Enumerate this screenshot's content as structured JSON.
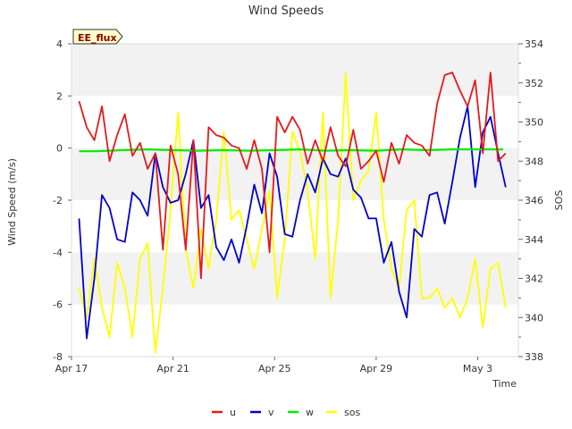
{
  "chart_data": {
    "type": "line",
    "title": "Wind Speeds",
    "xlabel": "Time",
    "ylabel": "Wind Speed (m/s)",
    "y2label": "SOS",
    "ylim": [
      -8,
      4
    ],
    "y2lim": [
      338,
      354
    ],
    "xlim": [
      0,
      17.6
    ],
    "x_unit": "days since Apr 17",
    "x_ticks": [
      {
        "value": 0,
        "label": "Apr 17"
      },
      {
        "value": 4,
        "label": "Apr 21"
      },
      {
        "value": 8,
        "label": "Apr 25"
      },
      {
        "value": 12,
        "label": "Apr 29"
      },
      {
        "value": 16,
        "label": "May 3"
      }
    ],
    "y_ticks": [
      -8,
      -6,
      -4,
      -2,
      0,
      2,
      4
    ],
    "y2_ticks": [
      338,
      340,
      342,
      344,
      346,
      348,
      350,
      352,
      354
    ],
    "badge": "EE_flux",
    "legend_position": "bottom-center",
    "series": [
      {
        "name": "u",
        "color": "#e41a1c",
        "axis": "left",
        "x": [
          0.3,
          0.6,
          0.9,
          1.2,
          1.5,
          1.8,
          2.1,
          2.4,
          2.7,
          3.0,
          3.3,
          3.6,
          3.9,
          4.2,
          4.5,
          4.8,
          5.1,
          5.4,
          5.7,
          6.0,
          6.3,
          6.6,
          6.9,
          7.2,
          7.5,
          7.8,
          8.1,
          8.4,
          8.7,
          9.0,
          9.3,
          9.6,
          9.9,
          10.2,
          10.5,
          10.8,
          11.1,
          11.4,
          11.7,
          12.0,
          12.3,
          12.6,
          12.9,
          13.2,
          13.5,
          13.8,
          14.1,
          14.4,
          14.7,
          15.0,
          15.3,
          15.6,
          15.9,
          16.2,
          16.5,
          16.8,
          17.1
        ],
        "values": [
          1.8,
          0.8,
          0.3,
          1.6,
          -0.5,
          0.5,
          1.3,
          -0.3,
          0.2,
          -0.8,
          -0.2,
          -3.9,
          0.1,
          -1.0,
          -3.9,
          0.3,
          -5.0,
          0.8,
          0.5,
          0.4,
          0.1,
          0.0,
          -0.8,
          0.3,
          -0.8,
          -4.0,
          1.2,
          0.6,
          1.2,
          0.7,
          -0.6,
          0.3,
          -0.5,
          0.8,
          -0.3,
          -0.7,
          0.7,
          -0.8,
          -0.5,
          -0.1,
          -1.3,
          0.2,
          -0.6,
          0.5,
          0.2,
          0.1,
          -0.3,
          1.7,
          2.8,
          2.9,
          2.2,
          1.6,
          2.6,
          -0.2,
          2.9,
          -0.5,
          -0.2
        ]
      },
      {
        "name": "v",
        "color": "#0000cd",
        "axis": "left",
        "x": [
          0.3,
          0.6,
          0.9,
          1.2,
          1.5,
          1.8,
          2.1,
          2.4,
          2.7,
          3.0,
          3.3,
          3.6,
          3.9,
          4.2,
          4.5,
          4.8,
          5.1,
          5.4,
          5.7,
          6.0,
          6.3,
          6.6,
          6.9,
          7.2,
          7.5,
          7.8,
          8.1,
          8.4,
          8.7,
          9.0,
          9.3,
          9.6,
          9.9,
          10.2,
          10.5,
          10.8,
          11.1,
          11.4,
          11.7,
          12.0,
          12.3,
          12.6,
          12.9,
          13.2,
          13.5,
          13.8,
          14.1,
          14.4,
          14.7,
          15.0,
          15.3,
          15.6,
          15.9,
          16.2,
          16.5,
          16.8,
          17.1
        ],
        "values": [
          -2.7,
          -7.3,
          -5.0,
          -1.8,
          -2.3,
          -3.5,
          -3.6,
          -1.7,
          -2.0,
          -2.6,
          -0.2,
          -1.5,
          -2.1,
          -2.0,
          -1.0,
          0.3,
          -2.3,
          -1.8,
          -3.8,
          -4.3,
          -3.5,
          -4.4,
          -3.0,
          -1.4,
          -2.5,
          -0.2,
          -1.1,
          -3.3,
          -3.4,
          -2.0,
          -1.0,
          -1.7,
          -0.4,
          -1.0,
          -1.1,
          -0.4,
          -1.6,
          -1.9,
          -2.7,
          -2.7,
          -4.4,
          -3.6,
          -5.5,
          -6.5,
          -3.1,
          -3.4,
          -1.8,
          -1.7,
          -2.9,
          -1.3,
          0.4,
          1.6,
          -1.5,
          0.6,
          1.2,
          -0.2,
          -1.5
        ]
      },
      {
        "name": "w",
        "color": "#00ee00",
        "axis": "left",
        "x": [
          0.3,
          1.0,
          2.0,
          3.0,
          4.0,
          5.0,
          6.0,
          7.0,
          8.0,
          9.0,
          10.0,
          11.0,
          12.0,
          13.0,
          14.0,
          15.0,
          16.0,
          17.0
        ],
        "values": [
          -0.12,
          -0.12,
          -0.08,
          -0.05,
          -0.08,
          -0.1,
          -0.08,
          -0.1,
          -0.08,
          -0.05,
          -0.1,
          -0.08,
          -0.1,
          -0.05,
          -0.08,
          -0.05,
          -0.05,
          -0.05
        ]
      },
      {
        "name": "sos",
        "color": "#ffff00",
        "axis": "right",
        "x": [
          0.3,
          0.6,
          0.9,
          1.2,
          1.5,
          1.8,
          2.1,
          2.4,
          2.7,
          3.0,
          3.3,
          3.6,
          3.9,
          4.2,
          4.5,
          4.8,
          5.1,
          5.4,
          5.7,
          6.0,
          6.3,
          6.6,
          6.9,
          7.2,
          7.5,
          7.8,
          8.1,
          8.4,
          8.7,
          9.0,
          9.3,
          9.6,
          9.9,
          10.2,
          10.5,
          10.8,
          11.1,
          11.4,
          11.7,
          12.0,
          12.3,
          12.6,
          12.9,
          13.2,
          13.5,
          13.8,
          14.1,
          14.4,
          14.7,
          15.0,
          15.3,
          15.6,
          15.9,
          16.2,
          16.5,
          16.8,
          17.1
        ],
        "values": [
          341.5,
          340.0,
          343.0,
          340.5,
          339.0,
          342.8,
          341.5,
          339.0,
          343.0,
          343.8,
          338.2,
          341.5,
          345.5,
          350.5,
          343.5,
          341.5,
          344.5,
          342.5,
          345.0,
          349.5,
          345.0,
          345.5,
          344.0,
          342.5,
          344.5,
          346.5,
          341.0,
          344.0,
          349.5,
          348.5,
          346.5,
          343.0,
          350.5,
          341.0,
          345.0,
          352.5,
          346.0,
          347.0,
          347.5,
          350.5,
          345.0,
          342.5,
          341.5,
          345.5,
          346.0,
          341.0,
          341.0,
          341.5,
          340.5,
          341.0,
          340.0,
          341.0,
          343.0,
          339.5,
          342.5,
          342.8,
          340.5
        ]
      }
    ]
  }
}
